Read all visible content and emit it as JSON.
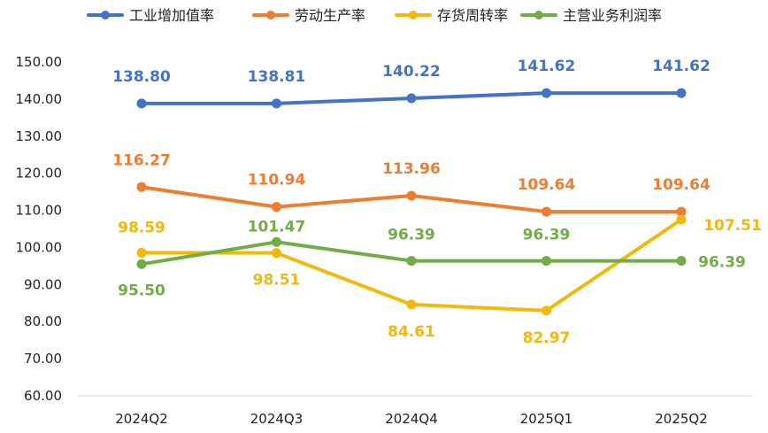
{
  "chart_data": {
    "type": "line",
    "title": "",
    "xlabel": "",
    "ylabel": "",
    "categories": [
      "2024Q2",
      "2024Q3",
      "2024Q4",
      "2025Q1",
      "2025Q2"
    ],
    "ylim": [
      60,
      150
    ],
    "yticks": [
      "150.00",
      "140.00",
      "130.00",
      "120.00",
      "110.00",
      "100.00",
      "90.00",
      "80.00",
      "70.00",
      "60.00"
    ],
    "grid": false,
    "legend_position": "top",
    "series": [
      {
        "name": "工业增加值率",
        "color": "#4472C4",
        "values": [
          138.8,
          138.81,
          140.22,
          141.62,
          141.62
        ],
        "labels": [
          "138.80",
          "138.81",
          "140.22",
          "141.62",
          "141.62"
        ]
      },
      {
        "name": "劳动生产率",
        "color": "#ED7D31",
        "values": [
          116.27,
          110.94,
          113.96,
          109.64,
          109.64
        ],
        "labels": [
          "116.27",
          "110.94",
          "113.96",
          "109.64",
          "109.64"
        ]
      },
      {
        "name": "存货周转率",
        "color": "#F2B90C",
        "values": [
          98.59,
          98.51,
          84.61,
          82.97,
          107.51
        ],
        "labels": [
          "98.59",
          "98.51",
          "84.61",
          "82.97",
          "107.51"
        ]
      },
      {
        "name": "主营业务利润率",
        "color": "#70AD47",
        "values": [
          95.5,
          101.47,
          96.39,
          96.39,
          96.39
        ],
        "labels": [
          "95.50",
          "101.47",
          "96.39",
          "96.39",
          "96.39"
        ]
      }
    ]
  }
}
